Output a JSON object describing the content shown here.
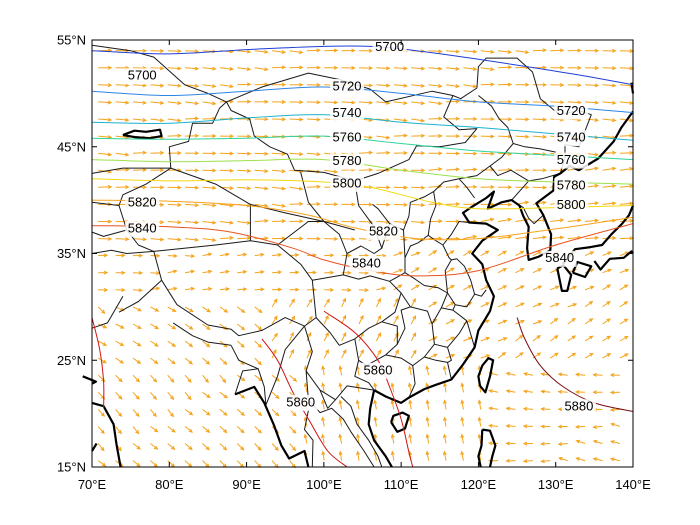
{
  "map": {
    "extent": {
      "lon": [
        70,
        140
      ],
      "lat": [
        15,
        55
      ]
    },
    "x_ticks": [
      {
        "value": 70,
        "label": "70°E"
      },
      {
        "value": 80,
        "label": "80°E"
      },
      {
        "value": 90,
        "label": "90°E"
      },
      {
        "value": 100,
        "label": "100°E"
      },
      {
        "value": 110,
        "label": "110°E"
      },
      {
        "value": 120,
        "label": "120°E"
      },
      {
        "value": 130,
        "label": "130°E"
      },
      {
        "value": 140,
        "label": "140°E"
      }
    ],
    "y_ticks": [
      {
        "value": 15,
        "label": "15°N"
      },
      {
        "value": 25,
        "label": "25°N"
      },
      {
        "value": 35,
        "label": "35°N"
      },
      {
        "value": 45,
        "label": "45°N"
      },
      {
        "value": 55,
        "label": "55°N"
      }
    ],
    "contours": [
      {
        "level": 5700,
        "color": "#1f3fd6",
        "points": [
          [
            70,
            54.0
          ],
          [
            80,
            53.7
          ],
          [
            90,
            54.1
          ],
          [
            100,
            54.4
          ],
          [
            106,
            54.4
          ],
          [
            112,
            54.0
          ],
          [
            120,
            53.2
          ],
          [
            128,
            52.3
          ],
          [
            134,
            51.6
          ],
          [
            140,
            50.8
          ]
        ],
        "labels": [
          {
            "text": "5700",
            "lon": 76.5,
            "lat": 51.6
          },
          {
            "text": "5700",
            "lon": 108.5,
            "lat": 54.3
          }
        ]
      },
      {
        "level": 5720,
        "color": "#2d84e6",
        "points": [
          [
            70,
            50.2
          ],
          [
            80,
            49.8
          ],
          [
            90,
            50.2
          ],
          [
            100,
            50.6
          ],
          [
            110,
            50.0
          ],
          [
            120,
            49.2
          ],
          [
            130,
            48.8
          ],
          [
            140,
            48.2
          ]
        ],
        "labels": [
          {
            "text": "5720",
            "lon": 103.0,
            "lat": 50.6
          },
          {
            "text": "5720",
            "lon": 132.0,
            "lat": 48.3
          }
        ]
      },
      {
        "level": 5740,
        "color": "#1cb2cf",
        "points": [
          [
            70,
            47.3
          ],
          [
            80,
            47.2
          ],
          [
            90,
            47.7
          ],
          [
            100,
            48.0
          ],
          [
            110,
            47.3
          ],
          [
            120,
            46.8
          ],
          [
            130,
            46.2
          ],
          [
            140,
            45.6
          ]
        ],
        "labels": [
          {
            "text": "5740",
            "lon": 103.0,
            "lat": 48.1
          },
          {
            "text": "5740",
            "lon": 132.0,
            "lat": 45.8
          }
        ]
      },
      {
        "level": 5760,
        "color": "#2ed39a",
        "points": [
          [
            70,
            45.8
          ],
          [
            80,
            45.7
          ],
          [
            90,
            45.8
          ],
          [
            100,
            46.0
          ],
          [
            110,
            45.3
          ],
          [
            120,
            44.6
          ],
          [
            130,
            44.2
          ],
          [
            140,
            43.8
          ]
        ],
        "labels": [
          {
            "text": "5760",
            "lon": 103.0,
            "lat": 45.8
          },
          {
            "text": "5760",
            "lon": 132.0,
            "lat": 43.7
          }
        ]
      },
      {
        "level": 5780,
        "color": "#9ee04a",
        "points": [
          [
            70,
            43.8
          ],
          [
            80,
            43.6
          ],
          [
            90,
            43.7
          ],
          [
            100,
            43.8
          ],
          [
            110,
            42.8
          ],
          [
            120,
            42.0
          ],
          [
            130,
            41.7
          ],
          [
            140,
            41.5
          ]
        ],
        "labels": [
          {
            "text": "5780",
            "lon": 103.0,
            "lat": 43.6
          },
          {
            "text": "5780",
            "lon": 132.0,
            "lat": 41.3
          }
        ]
      },
      {
        "level": 5800,
        "color": "#f2d90f",
        "points": [
          [
            70,
            42.0
          ],
          [
            80,
            41.8
          ],
          [
            90,
            41.9
          ],
          [
            100,
            41.7
          ],
          [
            106,
            41.2
          ],
          [
            114,
            39.8
          ],
          [
            120,
            39.2
          ],
          [
            130,
            39.3
          ],
          [
            140,
            39.5
          ]
        ],
        "labels": [
          {
            "text": "5800",
            "lon": 103.0,
            "lat": 41.5
          },
          {
            "text": "5800",
            "lon": 132.0,
            "lat": 39.5
          }
        ]
      },
      {
        "level": 5820,
        "color": "#f7a21b",
        "points": [
          [
            70,
            40.0
          ],
          [
            80,
            39.9
          ],
          [
            90,
            39.5
          ],
          [
            98,
            38.6
          ],
          [
            104,
            37.4
          ],
          [
            112,
            36.4
          ],
          [
            120,
            36.4
          ],
          [
            130,
            37.3
          ],
          [
            140,
            38.4
          ]
        ],
        "labels": [
          {
            "text": "5820",
            "lon": 76.5,
            "lat": 39.7
          },
          {
            "text": "5820",
            "lon": 107.7,
            "lat": 37.0
          }
        ]
      },
      {
        "level": 5840,
        "color": "#e8531f",
        "points": [
          [
            70,
            37.6
          ],
          [
            80,
            37.5
          ],
          [
            88,
            37.0
          ],
          [
            96,
            35.5
          ],
          [
            100,
            34.4
          ],
          [
            106,
            33.4
          ],
          [
            112,
            32.9
          ],
          [
            120,
            33.4
          ],
          [
            130,
            35.8
          ],
          [
            140,
            37.8
          ]
        ],
        "labels": [
          {
            "text": "5840",
            "lon": 76.5,
            "lat": 37.3
          },
          {
            "text": "5840",
            "lon": 105.5,
            "lat": 34.0
          },
          {
            "text": "5840",
            "lon": 130.5,
            "lat": 34.5
          }
        ]
      },
      {
        "level": 5860,
        "color": "#d11212",
        "points": [
          [
            100,
            29.6
          ],
          [
            104,
            27.6
          ],
          [
            107,
            25.0
          ],
          [
            108.5,
            22.5
          ],
          [
            110,
            19.5
          ],
          [
            111,
            16.4
          ],
          [
            111.5,
            15.0
          ]
        ],
        "labels": [
          {
            "text": "5860",
            "lon": 107.0,
            "lat": 24.0
          }
        ]
      },
      {
        "level": 5860,
        "color": "#d11212",
        "points": [
          [
            70,
            29.0
          ],
          [
            71,
            26.0
          ],
          [
            71.5,
            23.0
          ],
          [
            71.5,
            20.5
          ]
        ],
        "labels": []
      },
      {
        "level": 5860,
        "color": "#d11212",
        "points": [
          [
            92,
            27.0
          ],
          [
            94,
            25.0
          ],
          [
            96,
            22.0
          ],
          [
            98,
            19.5
          ],
          [
            100.5,
            16.5
          ],
          [
            103,
            15.0
          ]
        ],
        "labels": [
          {
            "text": "5860",
            "lon": 97.0,
            "lat": 21.0
          }
        ]
      },
      {
        "level": 5880,
        "color": "#7a0c0c",
        "points": [
          [
            125,
            29.0
          ],
          [
            126,
            27.0
          ],
          [
            128,
            24.5
          ],
          [
            131,
            22.5
          ],
          [
            135,
            21.0
          ],
          [
            140,
            20.2
          ]
        ],
        "labels": [
          {
            "text": "5880",
            "lon": 133.0,
            "lat": 20.6
          }
        ]
      }
    ],
    "colors": {
      "wind_arrows": "#f5a31a",
      "coastline": "#000000",
      "borders": "#1a1a1a",
      "frame": "#000000"
    }
  }
}
